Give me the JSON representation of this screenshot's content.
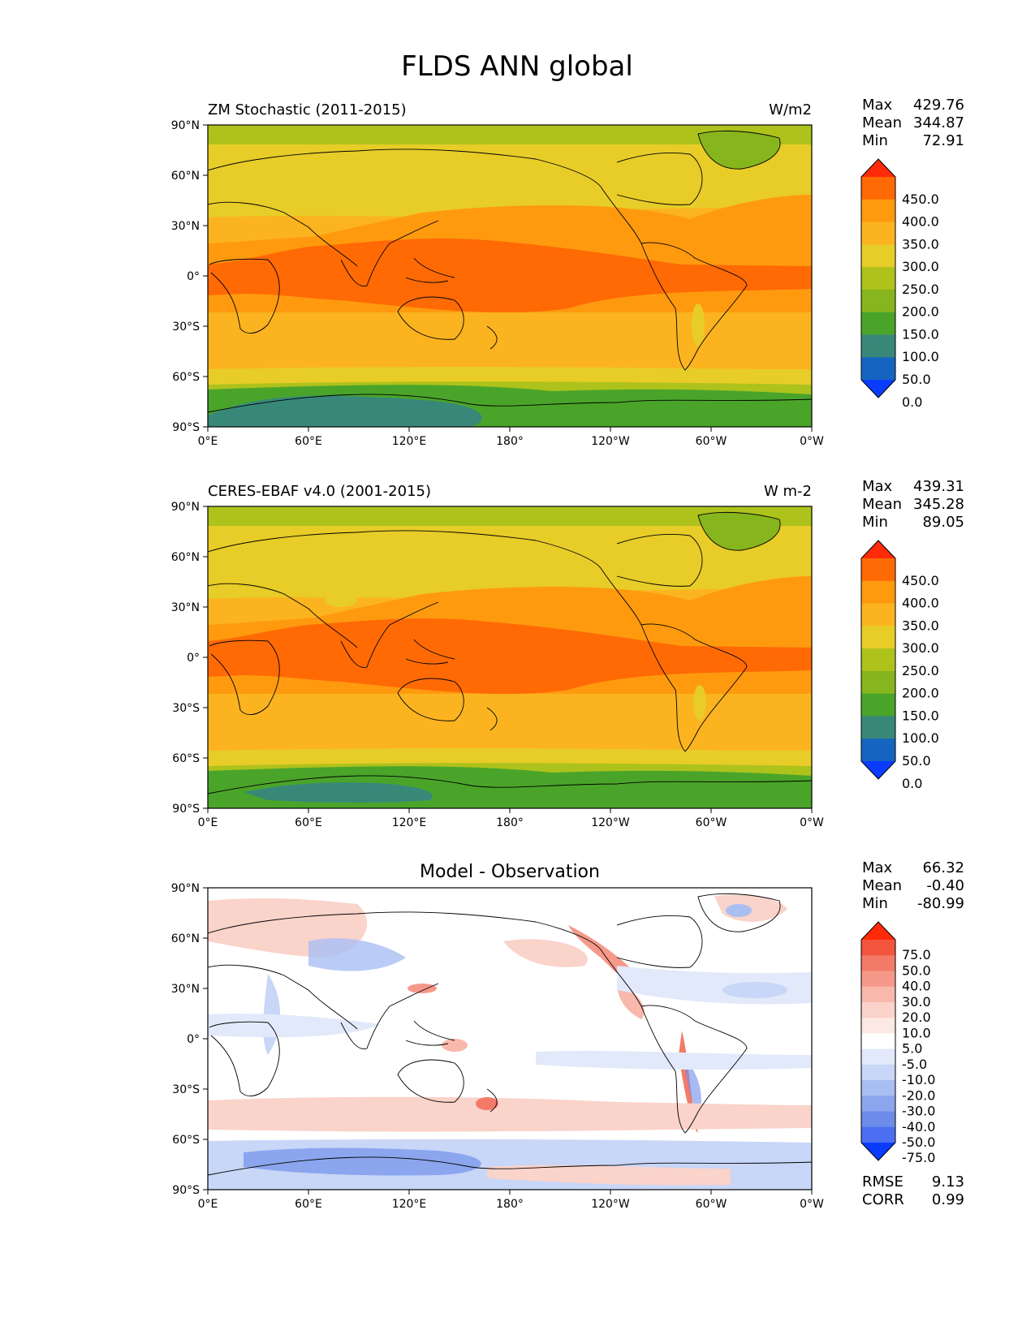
{
  "figure_title": "FLDS ANN global",
  "axis_ticks": {
    "y": [
      "90°N",
      "60°N",
      "30°N",
      "0°",
      "30°S",
      "60°S",
      "90°S"
    ],
    "x": [
      "0°E",
      "60°E",
      "120°E",
      "180°",
      "120°W",
      "60°W",
      "0°W"
    ]
  },
  "stat_labels": {
    "max": "Max",
    "mean": "Mean",
    "min": "Min",
    "rmse": "RMSE",
    "corr": "CORR"
  },
  "panels": [
    {
      "title_left": "ZM Stochastic (2011-2015)",
      "title_right": "W/m2",
      "stats": {
        "max": "429.76",
        "mean": "344.87",
        "min": "72.91"
      },
      "colorbar": {
        "labels": [
          "450.0",
          "400.0",
          "350.0",
          "300.0",
          "250.0",
          "200.0",
          "150.0",
          "100.0",
          "50.0",
          "0.0"
        ],
        "colors": [
          "#ff2a0a",
          "#ff6a05",
          "#ff9a0e",
          "#fbb420",
          "#e8cc28",
          "#aec21c",
          "#86b51d",
          "#4aa42a",
          "#38887a",
          "#1565c0",
          "#0a3cff"
        ]
      }
    },
    {
      "title_left": "CERES-EBAF v4.0 (2001-2015)",
      "title_right": "W m-2",
      "stats": {
        "max": "439.31",
        "mean": "345.28",
        "min": "89.05"
      },
      "colorbar": {
        "labels": [
          "450.0",
          "400.0",
          "350.0",
          "300.0",
          "250.0",
          "200.0",
          "150.0",
          "100.0",
          "50.0",
          "0.0"
        ],
        "colors": [
          "#ff2a0a",
          "#ff6a05",
          "#ff9a0e",
          "#fbb420",
          "#e8cc28",
          "#aec21c",
          "#86b51d",
          "#4aa42a",
          "#38887a",
          "#1565c0",
          "#0a3cff"
        ]
      }
    },
    {
      "title_center": "Model - Observation",
      "stats": {
        "max": "66.32",
        "mean": "-0.40",
        "min": "-80.99",
        "rmse": "9.13",
        "corr": "0.99"
      },
      "colorbar": {
        "labels": [
          "75.0",
          "50.0",
          "40.0",
          "30.0",
          "20.0",
          "10.0",
          "5.0",
          "-5.0",
          "-10.0",
          "-20.0",
          "-30.0",
          "-40.0",
          "-50.0",
          "-75.0"
        ],
        "colors": [
          "#ff2a0a",
          "#f2553c",
          "#f47a68",
          "#f6998a",
          "#f8b8ac",
          "#fad3ca",
          "#fce9e4",
          "#ffffff",
          "#e2e9fa",
          "#c8d6f7",
          "#a9bff2",
          "#8ba6ee",
          "#6d8ce9",
          "#4b6ff0",
          "#0a3cff"
        ]
      }
    }
  ]
}
